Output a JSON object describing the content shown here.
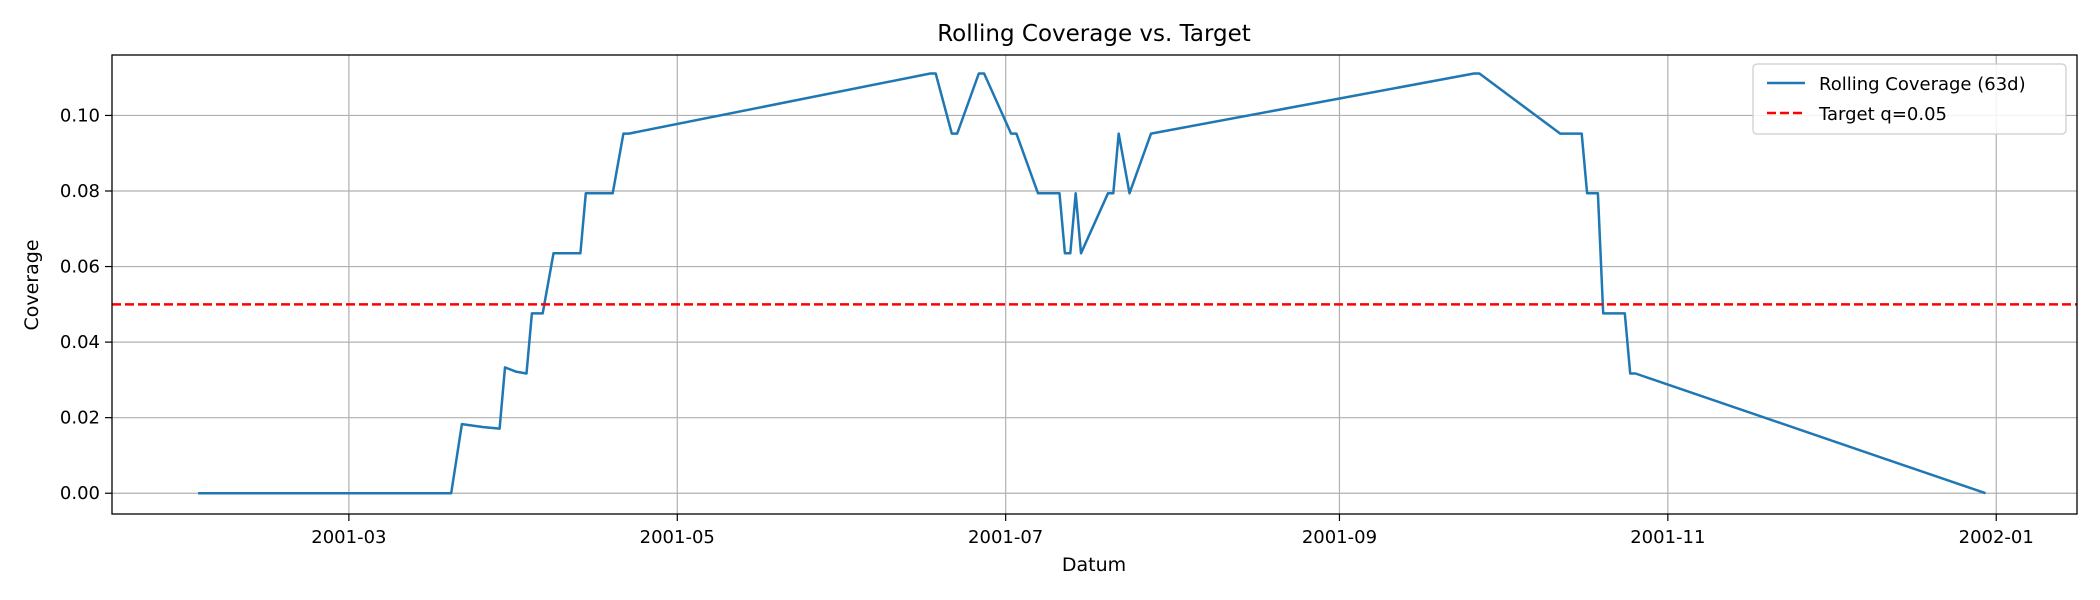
{
  "chart_data": {
    "type": "line",
    "title": "Rolling Coverage vs. Target",
    "xlabel": "Datum",
    "ylabel": "Coverage",
    "x_ticks": [
      "2001-03",
      "2001-05",
      "2001-07",
      "2001-09",
      "2001-11",
      "2002-01"
    ],
    "y_ticks": [
      "0.00",
      "0.02",
      "0.04",
      "0.06",
      "0.08",
      "0.10"
    ],
    "xlim": [
      "2001-01-16",
      "2002-01-16"
    ],
    "ylim": [
      -0.0055,
      0.116
    ],
    "grid": true,
    "legend_position": "top-right",
    "series": [
      {
        "name": "Rolling Coverage (63d)",
        "color": "#1f77b4",
        "style": "solid",
        "x": [
          "2001-02-01",
          "2001-03-20",
          "2001-03-22",
          "2001-03-26",
          "2001-03-29",
          "2001-03-30",
          "2001-04-01",
          "2001-04-03",
          "2001-04-04",
          "2001-04-06",
          "2001-04-08",
          "2001-04-13",
          "2001-04-14",
          "2001-04-19",
          "2001-04-21",
          "2001-04-22",
          "2001-06-17",
          "2001-06-18",
          "2001-06-21",
          "2001-06-22",
          "2001-06-26",
          "2001-06-27",
          "2001-07-02",
          "2001-07-03",
          "2001-07-07",
          "2001-07-11",
          "2001-07-12",
          "2001-07-13",
          "2001-07-14",
          "2001-07-15",
          "2001-07-20",
          "2001-07-21",
          "2001-07-22",
          "2001-07-24",
          "2001-07-28",
          "2001-09-26",
          "2001-09-27",
          "2001-10-12",
          "2001-10-16",
          "2001-10-17",
          "2001-10-19",
          "2001-10-20",
          "2001-10-24",
          "2001-10-25",
          "2001-10-26",
          "2001-12-30"
        ],
        "values": [
          0.0,
          0.0,
          0.0183,
          0.0175,
          0.0171,
          0.0333,
          0.0322,
          0.0317,
          0.0476,
          0.0476,
          0.0635,
          0.0635,
          0.0794,
          0.0794,
          0.0952,
          0.0952,
          0.1111,
          0.1111,
          0.0952,
          0.0952,
          0.1111,
          0.1111,
          0.0952,
          0.0952,
          0.0794,
          0.0794,
          0.0635,
          0.0635,
          0.0794,
          0.0635,
          0.0794,
          0.0794,
          0.0952,
          0.0794,
          0.0952,
          0.1111,
          0.1111,
          0.0952,
          0.0952,
          0.0794,
          0.0794,
          0.0476,
          0.0476,
          0.0317,
          0.0317,
          0.0
        ]
      },
      {
        "name": "Target q=0.05",
        "color": "#ff0000",
        "style": "dashed",
        "hline": 0.05
      }
    ]
  }
}
